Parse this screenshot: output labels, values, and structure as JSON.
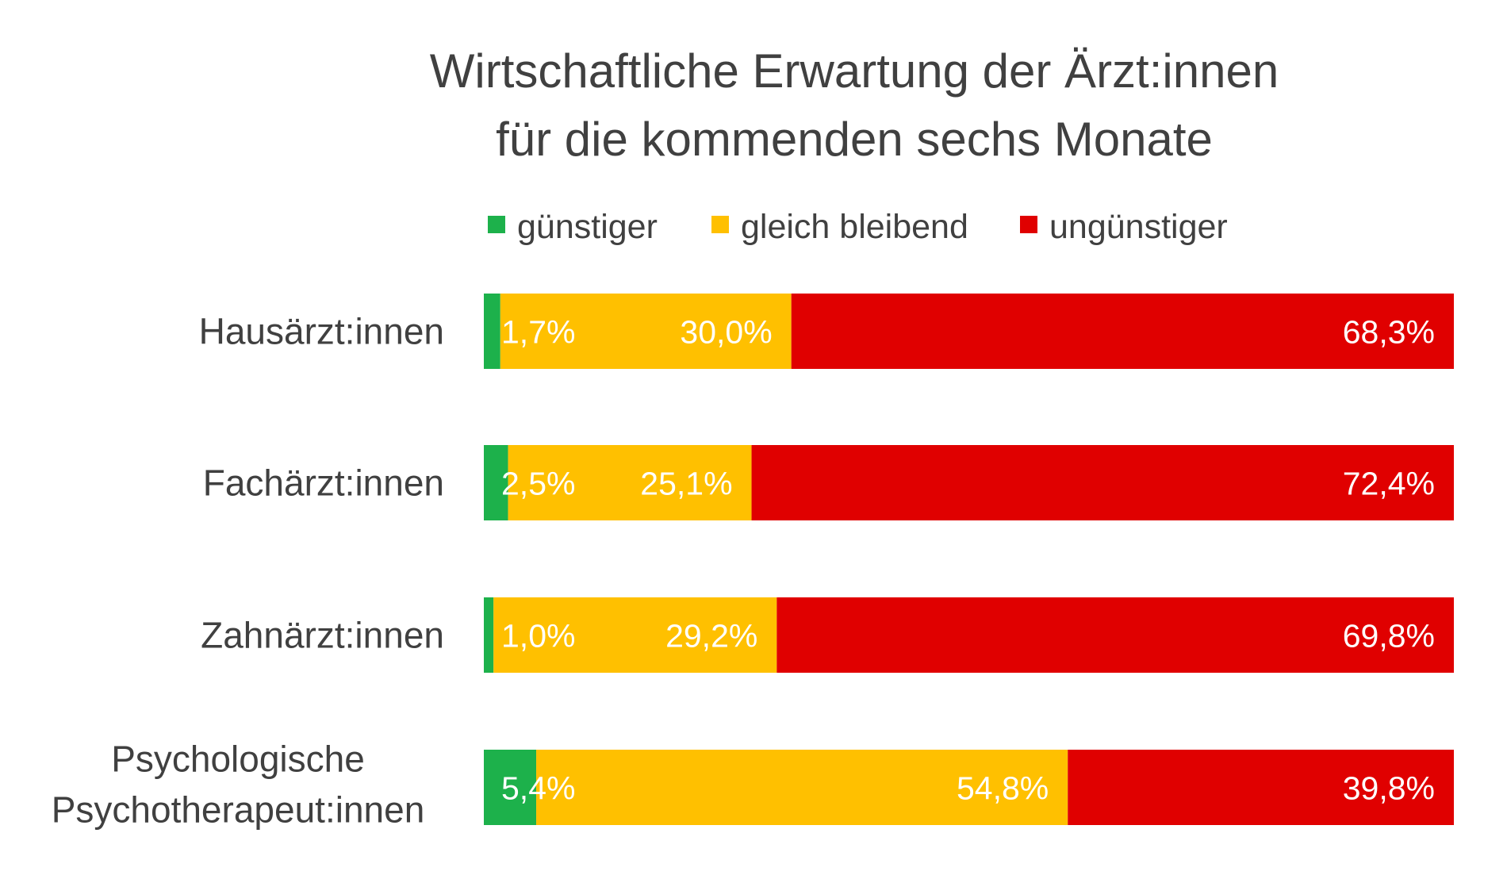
{
  "chart_data": {
    "type": "bar",
    "orientation": "horizontal",
    "stacked": true,
    "normalized": "100%",
    "title": [
      "Wirtschaftliche Erwartung der Ärzt:innen",
      "für die kommenden sechs Monate"
    ],
    "xlabel": "",
    "ylabel": "",
    "xlim": [
      0,
      100
    ],
    "grid": false,
    "legend_position": "top",
    "categories": [
      [
        "Hausärzt:innen"
      ],
      [
        "Fachärzt:innen"
      ],
      [
        "Zahnärzt:innen"
      ],
      [
        "Psychologische",
        "Psychotherapeut:innen"
      ]
    ],
    "series": [
      {
        "name": "günstiger",
        "color": "#1DB14B",
        "values": [
          1.7,
          2.5,
          1.0,
          5.4
        ],
        "labels": [
          "1,7%",
          "2,5%",
          "1,0%",
          "5,4%"
        ]
      },
      {
        "name": "gleich bleibend",
        "color": "#FFC000",
        "values": [
          30.0,
          25.1,
          29.2,
          54.8
        ],
        "labels": [
          "30,0%",
          "25,1%",
          "29,2%",
          "54,8%"
        ]
      },
      {
        "name": "ungünstiger",
        "color": "#E00000",
        "values": [
          68.3,
          72.4,
          69.8,
          39.8
        ],
        "labels": [
          "68,3%",
          "72,4%",
          "69,8%",
          "39,8%"
        ]
      }
    ]
  }
}
